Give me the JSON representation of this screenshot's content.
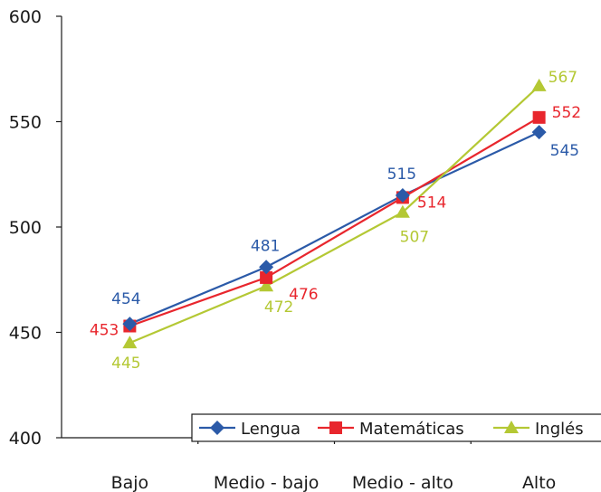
{
  "chart_data": {
    "type": "line",
    "categories": [
      "Bajo",
      "Medio - bajo",
      "Medio - alto",
      "Alto"
    ],
    "ylim": [
      400,
      600
    ],
    "yticks": [
      400,
      450,
      500,
      550,
      600
    ],
    "grid": false,
    "legend_position": "bottom-right",
    "series": [
      {
        "name": "Lengua",
        "values": [
          454,
          481,
          515,
          545
        ],
        "color": "#2b5aa8",
        "marker": "diamond",
        "labels": [
          "454",
          "481",
          "515",
          "545"
        ]
      },
      {
        "name": "Matemáticas",
        "values": [
          453,
          476,
          514,
          552
        ],
        "color": "#e8262d",
        "marker": "square",
        "labels": [
          "453",
          "476",
          "514",
          "552"
        ]
      },
      {
        "name": "Inglés",
        "values": [
          445,
          472,
          507,
          567
        ],
        "color": "#b4c834",
        "marker": "triangle",
        "labels": [
          "445",
          "472",
          "507",
          "567"
        ]
      }
    ]
  }
}
